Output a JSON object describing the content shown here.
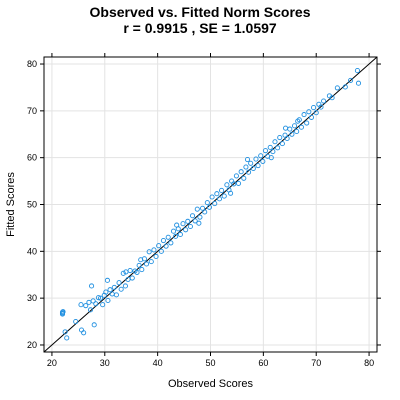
{
  "colors": {
    "points": "#1f8fe0",
    "fit_line": "#000000",
    "grid": "#e3e3e3",
    "frame": "#000000"
  },
  "chart_data": {
    "type": "scatter",
    "title": "Observed vs. Fitted Norm Scores",
    "subtitle": "r =  0.9915 , SE =  1.0597",
    "xlabel": "Observed Scores",
    "ylabel": "Fitted Scores",
    "xlim": [
      18.5,
      81.5
    ],
    "ylim": [
      18.5,
      81.5
    ],
    "xticks": [
      20,
      30,
      40,
      50,
      60,
      70,
      80
    ],
    "yticks": [
      20,
      30,
      40,
      50,
      60,
      70,
      80
    ],
    "grid": true,
    "reference_line": {
      "from": [
        18.5,
        18.5
      ],
      "to": [
        81.5,
        81.5
      ]
    },
    "points": [
      [
        22,
        27
      ],
      [
        22,
        26.6
      ],
      [
        22,
        26.8
      ],
      [
        22.1,
        27.1
      ],
      [
        22.5,
        22.8
      ],
      [
        22.8,
        21.5
      ],
      [
        24.5,
        25.0
      ],
      [
        25.5,
        28.6
      ],
      [
        25.6,
        23.2
      ],
      [
        26,
        22.6
      ],
      [
        26.4,
        28.4
      ],
      [
        27,
        29.1
      ],
      [
        27.3,
        27.5
      ],
      [
        27.5,
        32.6
      ],
      [
        27.8,
        29.4
      ],
      [
        28,
        24.3
      ],
      [
        28.3,
        28.8
      ],
      [
        28.8,
        30.1
      ],
      [
        29.2,
        30.0
      ],
      [
        29.6,
        28.6
      ],
      [
        29.9,
        30.6
      ],
      [
        30.2,
        31.3
      ],
      [
        30.6,
        29.5
      ],
      [
        31,
        31.8
      ],
      [
        31.4,
        30.9
      ],
      [
        31.8,
        32.3
      ],
      [
        32.2,
        30.7
      ],
      [
        32.7,
        33.3
      ],
      [
        33.1,
        31.9
      ],
      [
        33.5,
        35.3
      ],
      [
        33.9,
        32.6
      ],
      [
        34.4,
        34.0
      ],
      [
        34.8,
        35.9
      ],
      [
        35.2,
        34.3
      ],
      [
        35.7,
        35.8
      ],
      [
        36.1,
        35.5
      ],
      [
        36.5,
        37.0
      ],
      [
        37,
        36.1
      ],
      [
        37.5,
        38.4
      ],
      [
        37.9,
        37.3
      ],
      [
        38.4,
        39.9
      ],
      [
        38.8,
        37.8
      ],
      [
        39.3,
        40.3
      ],
      [
        39.7,
        38.9
      ],
      [
        40.2,
        41.2
      ],
      [
        40.7,
        40.0
      ],
      [
        41.1,
        42.3
      ],
      [
        41.6,
        41.1
      ],
      [
        42,
        43.0
      ],
      [
        42.5,
        41.8
      ],
      [
        43,
        44.3
      ],
      [
        43.4,
        43.2
      ],
      [
        43.9,
        44.8
      ],
      [
        44.3,
        43.6
      ],
      [
        44.8,
        45.9
      ],
      [
        45.3,
        44.6
      ],
      [
        45.7,
        46.4
      ],
      [
        46.2,
        45.3
      ],
      [
        46.6,
        47.6
      ],
      [
        47.1,
        46.5
      ],
      [
        47.5,
        49.0
      ],
      [
        48,
        47.3
      ],
      [
        48.5,
        49.2
      ],
      [
        48.9,
        48.4
      ],
      [
        49.4,
        50.4
      ],
      [
        49.8,
        49.4
      ],
      [
        50.3,
        51.6
      ],
      [
        50.8,
        50.2
      ],
      [
        51.2,
        52.3
      ],
      [
        51.7,
        51.2
      ],
      [
        52.1,
        53.0
      ],
      [
        52.6,
        51.8
      ],
      [
        53.1,
        54.2
      ],
      [
        53.5,
        53.1
      ],
      [
        54,
        55.0
      ],
      [
        54.4,
        54.4
      ],
      [
        54.9,
        56.1
      ],
      [
        55.3,
        54.5
      ],
      [
        55.8,
        57.0
      ],
      [
        56.3,
        55.6
      ],
      [
        56.7,
        58.0
      ],
      [
        57.2,
        56.9
      ],
      [
        57.6,
        58.8
      ],
      [
        58.1,
        57.7
      ],
      [
        58.6,
        59.7
      ],
      [
        59,
        58.3
      ],
      [
        59.5,
        60.4
      ],
      [
        59.9,
        59.2
      ],
      [
        60.4,
        61.5
      ],
      [
        60.8,
        60.3
      ],
      [
        61.3,
        62.2
      ],
      [
        61.8,
        61.3
      ],
      [
        62.2,
        63.4
      ],
      [
        62.7,
        62.1
      ],
      [
        63.1,
        64.3
      ],
      [
        63.6,
        63.0
      ],
      [
        64.1,
        64.8
      ],
      [
        64.5,
        64.1
      ],
      [
        65,
        66.1
      ],
      [
        65.4,
        65.0
      ],
      [
        65.9,
        66.8
      ],
      [
        66.3,
        65.6
      ],
      [
        66.8,
        68.1
      ],
      [
        67.2,
        66.5
      ],
      [
        67.7,
        69.2
      ],
      [
        68.2,
        67.4
      ],
      [
        68.6,
        69.8
      ],
      [
        69.1,
        68.6
      ],
      [
        69.5,
        70.7
      ],
      [
        70,
        69.6
      ],
      [
        70.5,
        71.4
      ],
      [
        70.9,
        70.8
      ],
      [
        71.4,
        72.1
      ],
      [
        72.5,
        73.2
      ],
      [
        73,
        72.8
      ],
      [
        74,
        74.9
      ],
      [
        75.5,
        75.1
      ],
      [
        76.5,
        76.5
      ],
      [
        77.8,
        78.6
      ],
      [
        78,
        75.9
      ],
      [
        30.5,
        33.8
      ],
      [
        34,
        35.6
      ],
      [
        36.8,
        38.2
      ],
      [
        43.6,
        45.6
      ],
      [
        47.8,
        46.0
      ],
      [
        53.8,
        52.4
      ],
      [
        57,
        59.6
      ],
      [
        61.5,
        60.0
      ],
      [
        64.2,
        66.3
      ],
      [
        66.5,
        67.8
      ]
    ]
  }
}
